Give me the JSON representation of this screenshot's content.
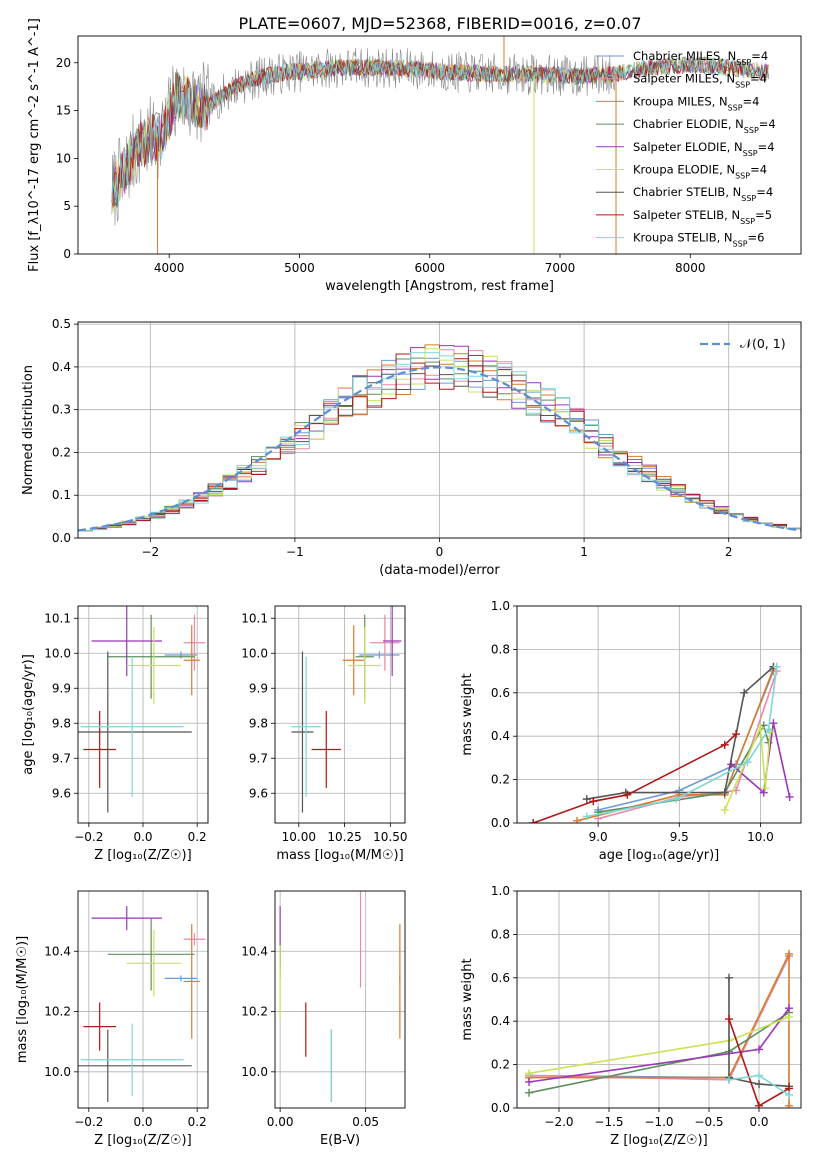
{
  "title": "PLATE=0607, MJD=52368, FIBERID=0016, z=0.07",
  "colors": {
    "Chabrier MILES": "#6f9ad8",
    "Salpeter MILES": "#e88aa8",
    "Kroupa MILES": "#d97b2c",
    "Chabrier ELODIE": "#5f8f5f",
    "Salpeter ELODIE": "#9a36b8",
    "Kroupa ELODIE": "#c9e35a",
    "Chabrier STELIB": "#555555",
    "Salpeter STELIB": "#b01818",
    "Kroupa STELIB": "#7fd6d6",
    "data": "#888888",
    "normal": "#5b8fd6"
  },
  "chart_data": [
    {
      "id": "spectrum",
      "type": "line",
      "xlabel": "wavelength [Angstrom, rest frame]",
      "ylabel": "Flux [f_λ10^-17 erg cm^-2 s^-1 A^-1]",
      "xlim": [
        3300,
        8850
      ],
      "ylim": [
        0,
        22.8
      ],
      "xticks": [
        4000,
        5000,
        6000,
        7000,
        8000
      ],
      "yticks": [
        0,
        5,
        10,
        15,
        20
      ],
      "grid": false,
      "legend_position": "upper-right",
      "legend": [
        {
          "model": "Chabrier MILES",
          "nssp": "4"
        },
        {
          "model": "Salpeter MILES",
          "nssp": "4"
        },
        {
          "model": "Kroupa MILES",
          "nssp": "4"
        },
        {
          "model": "Chabrier ELODIE",
          "nssp": "4"
        },
        {
          "model": "Salpeter ELODIE",
          "nssp": "4"
        },
        {
          "model": "Kroupa ELODIE",
          "nssp": "4"
        },
        {
          "model": "Chabrier STELIB",
          "nssp": "4"
        },
        {
          "model": "Salpeter STELIB",
          "nssp": "5"
        },
        {
          "model": "Kroupa STELIB",
          "nssp": "6"
        }
      ],
      "continuum": {
        "x": [
          3560,
          3650,
          3750,
          3850,
          3950,
          4050,
          4150,
          4300,
          4500,
          4700,
          4900,
          5100,
          5300,
          5600,
          5900,
          6200,
          6500,
          6800,
          7100,
          7400,
          7700,
          8000,
          8300,
          8600
        ],
        "y": [
          6.5,
          8.5,
          11.0,
          12.0,
          12.5,
          16.5,
          16.0,
          15.5,
          17.5,
          18.5,
          19.0,
          19.2,
          19.5,
          19.5,
          19.3,
          19.0,
          18.8,
          18.8,
          18.6,
          18.8,
          19.5,
          19.8,
          19.5,
          19.0
        ]
      },
      "models_range": [
        3560,
        8600
      ],
      "data_range": [
        3560,
        7430
      ],
      "data_spikes": [
        [
          3910,
          0
        ],
        [
          6800,
          0
        ],
        [
          7430,
          0
        ],
        [
          6570,
          23
        ]
      ]
    },
    {
      "id": "residuals",
      "type": "histogram",
      "xlabel": "(data-model)/error",
      "ylabel": "Normed distribution",
      "xlim": [
        -2.5,
        2.5
      ],
      "ylim": [
        0,
        0.505
      ],
      "xticks": [
        -2,
        -1,
        0,
        1,
        2
      ],
      "yticks": [
        0.0,
        0.1,
        0.2,
        0.3,
        0.4,
        0.5
      ],
      "grid": true,
      "legend_position": "upper-right",
      "legend_label": "𝒩(0, 1)",
      "bin_width": 0.1
    },
    {
      "id": "age-vs-z",
      "type": "errorbar",
      "xlabel": "Z [log₁₀(Z/Z☉)]",
      "ylabel": "age  [log₁₀(age/yr)]",
      "xlim": [
        -0.24,
        0.24
      ],
      "ylim": [
        9.515,
        10.135
      ],
      "xticks": [
        -0.2,
        0.0,
        0.2
      ],
      "yticks": [
        9.6,
        9.7,
        9.8,
        9.9,
        10.0,
        10.1
      ],
      "grid": true,
      "points": [
        {
          "model": "Chabrier MILES",
          "x": 0.14,
          "xerr": 0.06,
          "y": 9.995,
          "yerr": 0.01
        },
        {
          "model": "Salpeter MILES",
          "x": 0.19,
          "xerr": 0.04,
          "y": 10.03,
          "yerr": 0.08
        },
        {
          "model": "Kroupa MILES",
          "x": 0.18,
          "xerr": 0.03,
          "y": 9.98,
          "yerr": 0.1
        },
        {
          "model": "Chabrier ELODIE",
          "x": 0.03,
          "xerr": 0.16,
          "y": 9.99,
          "yerr": 0.12
        },
        {
          "model": "Salpeter ELODIE",
          "x": -0.06,
          "xerr": 0.13,
          "y": 10.035,
          "yerr": 0.1
        },
        {
          "model": "Kroupa ELODIE",
          "x": 0.04,
          "xerr": 0.1,
          "y": 9.965,
          "yerr": 0.11
        },
        {
          "model": "Chabrier STELIB",
          "x": -0.13,
          "xerr": 0.31,
          "y": 9.775,
          "yerr": 0.23
        },
        {
          "model": "Salpeter STELIB",
          "x": -0.16,
          "xerr": 0.06,
          "y": 9.725,
          "yerr": 0.11
        },
        {
          "model": "Kroupa STELIB",
          "x": -0.04,
          "xerr": 0.19,
          "y": 9.79,
          "yerr": 0.2
        }
      ]
    },
    {
      "id": "age-vs-mass",
      "type": "errorbar",
      "xlabel": "mass [log₁₀(M/M☉)]",
      "ylabel": "",
      "xlim": [
        9.87,
        10.58
      ],
      "ylim": [
        9.515,
        10.135
      ],
      "xticks": [
        10.0,
        10.25,
        10.5
      ],
      "yticks": [
        9.6,
        9.7,
        9.8,
        9.9,
        10.0,
        10.1
      ],
      "grid": true,
      "points": [
        {
          "model": "Chabrier MILES",
          "x": 10.44,
          "xerr": 0.11,
          "y": 9.995,
          "yerr": 0.01
        },
        {
          "model": "Salpeter MILES",
          "x": 10.47,
          "xerr": 0.08,
          "y": 10.03,
          "yerr": 0.08
        },
        {
          "model": "Kroupa MILES",
          "x": 10.3,
          "xerr": 0.06,
          "y": 9.98,
          "yerr": 0.1
        },
        {
          "model": "Chabrier ELODIE",
          "x": 10.36,
          "xerr": 0.05,
          "y": 9.99,
          "yerr": 0.12
        },
        {
          "model": "Salpeter ELODIE",
          "x": 10.51,
          "xerr": 0.05,
          "y": 10.035,
          "yerr": 0.1
        },
        {
          "model": "Kroupa ELODIE",
          "x": 10.36,
          "xerr": 0.09,
          "y": 9.965,
          "yerr": 0.11
        },
        {
          "model": "Chabrier STELIB",
          "x": 10.02,
          "xerr": 0.06,
          "y": 9.775,
          "yerr": 0.23
        },
        {
          "model": "Salpeter STELIB",
          "x": 10.15,
          "xerr": 0.08,
          "y": 9.725,
          "yerr": 0.11
        },
        {
          "model": "Kroupa STELIB",
          "x": 10.04,
          "xerr": 0.08,
          "y": 9.79,
          "yerr": 0.2
        }
      ]
    },
    {
      "id": "weight-vs-age",
      "type": "line",
      "xlabel": "age  [log₁₀(age/yr)]",
      "ylabel": "mass weight",
      "xlim": [
        8.5,
        10.25
      ],
      "ylim": [
        0,
        1
      ],
      "xticks": [
        9.0,
        9.5,
        10.0
      ],
      "yticks": [
        0.0,
        0.2,
        0.4,
        0.6,
        0.8,
        1.0
      ],
      "grid": true,
      "series": [
        {
          "model": "Chabrier MILES",
          "points": [
            [
              9.0,
              0.06
            ],
            [
              9.5,
              0.15
            ],
            [
              9.85,
              0.27
            ],
            [
              10.08,
              0.7
            ]
          ]
        },
        {
          "model": "Salpeter MILES",
          "points": [
            [
              9.0,
              0.02
            ],
            [
              9.5,
              0.12
            ],
            [
              9.85,
              0.15
            ],
            [
              10.1,
              0.7
            ]
          ]
        },
        {
          "model": "Kroupa MILES",
          "points": [
            [
              8.87,
              0.01
            ],
            [
              9.5,
              0.13
            ],
            [
              9.78,
              0.13
            ],
            [
              10.08,
              0.71
            ]
          ]
        },
        {
          "model": "Chabrier ELODIE",
          "points": [
            [
              9.0,
              0.05
            ],
            [
              9.78,
              0.14
            ],
            [
              10.02,
              0.45
            ],
            [
              10.05,
              0.37
            ]
          ]
        },
        {
          "model": "Salpeter ELODIE",
          "points": [
            [
              9.82,
              0.27
            ],
            [
              10.02,
              0.14
            ],
            [
              10.08,
              0.46
            ],
            [
              10.18,
              0.12
            ]
          ]
        },
        {
          "model": "Kroupa ELODIE",
          "points": [
            [
              9.78,
              0.06
            ],
            [
              10.0,
              0.44
            ],
            [
              10.03,
              0.16
            ],
            [
              10.06,
              0.42
            ]
          ]
        },
        {
          "model": "Chabrier STELIB",
          "points": [
            [
              8.93,
              0.11
            ],
            [
              9.17,
              0.14
            ],
            [
              9.78,
              0.14
            ],
            [
              9.9,
              0.6
            ],
            [
              10.08,
              0.72
            ]
          ]
        },
        {
          "model": "Salpeter STELIB",
          "points": [
            [
              8.6,
              0.0
            ],
            [
              8.97,
              0.1
            ],
            [
              9.18,
              0.13
            ],
            [
              9.78,
              0.36
            ],
            [
              9.85,
              0.41
            ]
          ]
        },
        {
          "model": "Kroupa STELIB",
          "points": [
            [
              8.93,
              0.03
            ],
            [
              9.48,
              0.11
            ],
            [
              9.92,
              0.28
            ],
            [
              10.05,
              0.43
            ],
            [
              10.1,
              0.72
            ]
          ]
        }
      ]
    },
    {
      "id": "mass-vs-z",
      "type": "errorbar",
      "xlabel": "Z [log₁₀(Z/Z☉)]",
      "ylabel": "mass [log₁₀(M/M☉)]",
      "xlim": [
        -0.24,
        0.24
      ],
      "ylim": [
        9.88,
        10.6
      ],
      "xticks": [
        -0.2,
        0.0,
        0.2
      ],
      "yticks": [
        10.0,
        10.2,
        10.4
      ],
      "grid": true,
      "points": [
        {
          "model": "Chabrier MILES",
          "x": 0.14,
          "xerr": 0.06,
          "y": 10.31,
          "yerr": 0.01
        },
        {
          "model": "Salpeter MILES",
          "x": 0.19,
          "xerr": 0.04,
          "y": 10.44,
          "yerr": 0.02
        },
        {
          "model": "Kroupa MILES",
          "x": 0.18,
          "xerr": 0.03,
          "y": 10.3,
          "yerr": 0.19
        },
        {
          "model": "Chabrier ELODIE",
          "x": 0.03,
          "xerr": 0.16,
          "y": 10.39,
          "yerr": 0.12
        },
        {
          "model": "Salpeter ELODIE",
          "x": -0.06,
          "xerr": 0.13,
          "y": 10.51,
          "yerr": 0.04
        },
        {
          "model": "Kroupa ELODIE",
          "x": 0.04,
          "xerr": 0.1,
          "y": 10.36,
          "yerr": 0.11
        },
        {
          "model": "Chabrier STELIB",
          "x": -0.13,
          "xerr": 0.31,
          "y": 10.02,
          "yerr": 0.12
        },
        {
          "model": "Salpeter STELIB",
          "x": -0.16,
          "xerr": 0.06,
          "y": 10.15,
          "yerr": 0.08
        },
        {
          "model": "Kroupa STELIB",
          "x": -0.04,
          "xerr": 0.19,
          "y": 10.04,
          "yerr": 0.12
        }
      ]
    },
    {
      "id": "mass-vs-ebv",
      "type": "errorbar",
      "xlabel": "E(B-V)",
      "ylabel": "",
      "xlim": [
        -0.003,
        0.073
      ],
      "ylim": [
        9.88,
        10.6
      ],
      "xticks": [
        0.0,
        0.05
      ],
      "yticks": [
        10.0,
        10.2,
        10.4
      ],
      "grid": true,
      "points": [
        {
          "model": "Chabrier MILES",
          "x": 0.07,
          "xerr": 0,
          "y": 10.31,
          "yerr": 0.01
        },
        {
          "model": "Salpeter MILES",
          "x": 0.047,
          "xerr": 0,
          "y": 10.44,
          "yerr": 0.16
        },
        {
          "model": "Kroupa MILES",
          "x": 0.07,
          "xerr": 0,
          "y": 10.3,
          "yerr": 0.19
        },
        {
          "model": "Chabrier ELODIE",
          "x": 0.0,
          "xerr": 0,
          "y": 10.36,
          "yerr": 0.05
        },
        {
          "model": "Salpeter ELODIE",
          "x": 0.0,
          "xerr": 0,
          "y": 10.45,
          "yerr": 0.1
        },
        {
          "model": "Kroupa ELODIE",
          "x": 0.0,
          "xerr": 0,
          "y": 10.3,
          "yerr": 0.12
        },
        {
          "model": "Chabrier STELIB",
          "x": 0.03,
          "xerr": 0,
          "y": 10.02,
          "yerr": 0.12
        },
        {
          "model": "Salpeter STELIB",
          "x": 0.015,
          "xerr": 0,
          "y": 10.14,
          "yerr": 0.09
        },
        {
          "model": "Kroupa STELIB",
          "x": 0.03,
          "xerr": 0,
          "y": 10.02,
          "yerr": 0.12
        }
      ]
    },
    {
      "id": "weight-vs-z",
      "type": "line",
      "xlabel": "Z [log₁₀(Z/Z☉)]",
      "ylabel": "mass weight",
      "xlim": [
        -2.42,
        0.42
      ],
      "ylim": [
        0,
        1
      ],
      "xticks": [
        -2.0,
        -1.5,
        -1.0,
        -0.5,
        0.0
      ],
      "yticks": [
        0.0,
        0.2,
        0.4,
        0.6,
        0.8,
        1.0
      ],
      "grid": true,
      "series": [
        {
          "model": "Chabrier MILES",
          "points": [
            [
              -2.3,
              0.15
            ],
            [
              -0.3,
              0.14
            ],
            [
              0.3,
              0.7
            ]
          ]
        },
        {
          "model": "Salpeter MILES",
          "points": [
            [
              -2.3,
              0.15
            ],
            [
              -0.3,
              0.13
            ],
            [
              0.3,
              0.7
            ]
          ]
        },
        {
          "model": "Kroupa MILES",
          "points": [
            [
              -2.3,
              0.14
            ],
            [
              -0.3,
              0.14
            ],
            [
              0.3,
              0.71
            ],
            [
              0.3,
              0.01
            ]
          ]
        },
        {
          "model": "Chabrier ELODIE",
          "points": [
            [
              -2.3,
              0.07
            ],
            [
              -0.3,
              0.26
            ],
            [
              0.3,
              0.44
            ]
          ]
        },
        {
          "model": "Salpeter ELODIE",
          "points": [
            [
              -2.3,
              0.12
            ],
            [
              0.0,
              0.27
            ],
            [
              0.3,
              0.46
            ]
          ]
        },
        {
          "model": "Kroupa ELODIE",
          "points": [
            [
              -2.3,
              0.16
            ],
            [
              -0.3,
              0.31
            ],
            [
              0.3,
              0.42
            ]
          ]
        },
        {
          "model": "Chabrier STELIB",
          "points": [
            [
              -0.3,
              0.6
            ],
            [
              -0.3,
              0.14
            ],
            [
              0.0,
              0.11
            ],
            [
              0.3,
              0.1
            ]
          ]
        },
        {
          "model": "Salpeter STELIB",
          "points": [
            [
              -0.3,
              0.41
            ],
            [
              0.0,
              0.01
            ],
            [
              0.3,
              0.09
            ]
          ]
        },
        {
          "model": "Kroupa STELIB",
          "points": [
            [
              -0.3,
              0.13
            ],
            [
              0.0,
              0.15
            ],
            [
              0.3,
              0.06
            ]
          ]
        }
      ]
    }
  ]
}
